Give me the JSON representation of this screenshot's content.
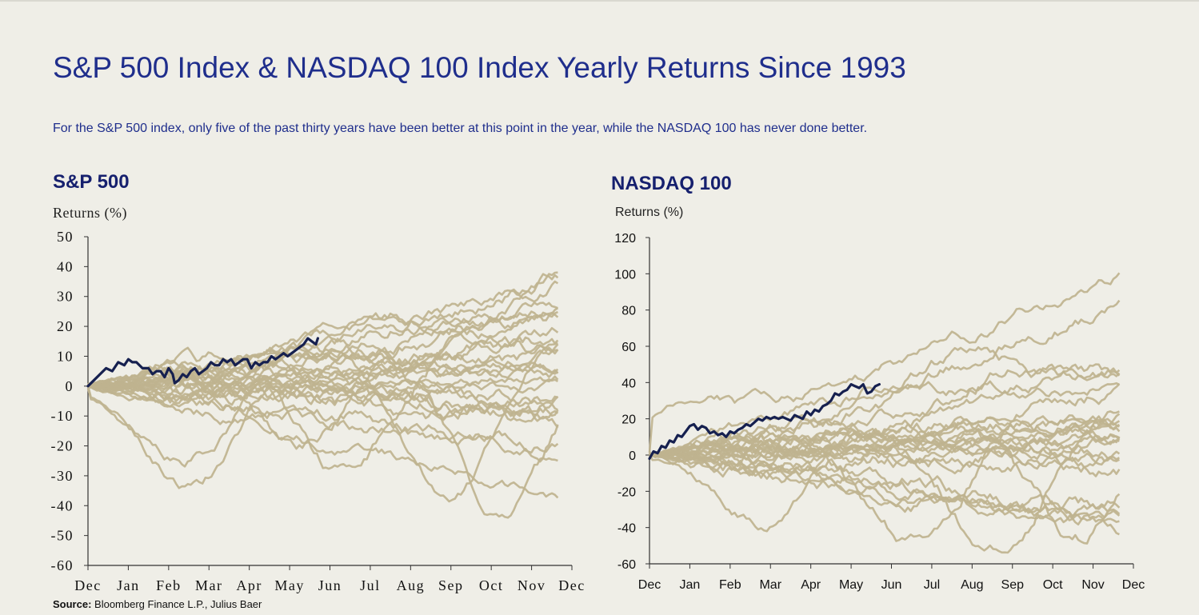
{
  "title": "S&P 500 Index & NASDAQ 100 Index Yearly Returns Since 1993",
  "subtitle": "For the S&P 500 index, only five of the past thirty years have been better at this point in the year, while the NASDAQ 100 has never done better.",
  "source": {
    "label": "Source:",
    "text": "Bloomberg Finance L.P., Julius Baer"
  },
  "colors": {
    "background": "#efeee7",
    "title": "#1f2e8c",
    "history": "#bfb38f",
    "current": "#16204f"
  },
  "chart_data": [
    {
      "type": "line",
      "title": "S&P 500",
      "ylabel": "Returns (%)",
      "ylim": [
        -60,
        50
      ],
      "yticks": [
        50,
        40,
        30,
        20,
        10,
        0,
        -10,
        -20,
        -30,
        -40,
        -50,
        -60
      ],
      "xlim": [
        0,
        12
      ],
      "xticks": [
        "Dec",
        "Jan",
        "Feb",
        "Mar",
        "Apr",
        "May",
        "Jun",
        "Jul",
        "Aug",
        "Sep",
        "Oct",
        "Nov",
        "Dec"
      ],
      "grid": false,
      "history_endpoints": [
        38,
        34,
        31,
        29,
        26,
        24,
        22,
        21,
        19,
        17,
        15,
        13,
        11,
        9,
        7,
        5,
        3,
        2,
        0,
        -3,
        -5,
        -7,
        -8,
        -9,
        -12,
        -19,
        -23,
        -36
      ],
      "history_extremes": {
        "peaks": [
          [
            9.5,
            20
          ],
          [
            10.6,
            32
          ],
          [
            11.6,
            38
          ]
        ],
        "troughs": [
          [
            2.4,
            -25
          ],
          [
            2.6,
            -31
          ],
          [
            5.4,
            -18
          ],
          [
            6.4,
            -28
          ],
          [
            9,
            -35
          ],
          [
            10.3,
            -47
          ]
        ]
      },
      "current_series": {
        "x": [
          0,
          0.15,
          0.3,
          0.45,
          0.6,
          0.75,
          0.9,
          1.0,
          1.1,
          1.2,
          1.35,
          1.5,
          1.6,
          1.7,
          1.8,
          1.9,
          2.0,
          2.1,
          2.15,
          2.25,
          2.35,
          2.45,
          2.55,
          2.65,
          2.75,
          2.85,
          2.95,
          3.05,
          3.15,
          3.25,
          3.35,
          3.45,
          3.55,
          3.65,
          3.75,
          3.85,
          3.95,
          4.05,
          4.15,
          4.25,
          4.35,
          4.45,
          4.55,
          4.65,
          4.75,
          4.85,
          4.95,
          5.05,
          5.15,
          5.25,
          5.35,
          5.45,
          5.55,
          5.65,
          5.7
        ],
        "values": [
          0,
          2,
          4,
          6,
          5,
          8,
          7,
          9,
          8,
          8,
          6,
          6,
          4,
          5,
          5,
          3,
          6,
          4,
          1,
          2,
          4,
          3,
          5,
          6,
          4,
          5,
          6,
          8,
          7,
          7,
          9,
          8,
          9,
          7,
          8,
          9,
          9,
          6,
          8,
          7,
          8,
          8,
          10,
          9,
          10,
          11,
          10,
          11,
          12,
          13,
          14,
          16,
          15,
          14,
          16
        ]
      }
    },
    {
      "type": "line",
      "title": "NASDAQ 100",
      "ylabel": "Returns (%)",
      "ylim": [
        -60,
        120
      ],
      "yticks": [
        120,
        100,
        80,
        60,
        40,
        20,
        0,
        -20,
        -40,
        -60
      ],
      "xlim": [
        0,
        12
      ],
      "xticks": [
        "Dec",
        "Jan",
        "Feb",
        "Mar",
        "Apr",
        "May",
        "Jun",
        "Jul",
        "Aug",
        "Sep",
        "Oct",
        "Nov",
        "Dec"
      ],
      "grid": false,
      "history_endpoints": [
        100,
        82,
        50,
        46,
        44,
        40,
        36,
        32,
        28,
        23,
        21,
        19,
        16,
        13,
        11,
        9,
        8,
        6,
        4,
        2,
        0,
        -3,
        -27,
        -33,
        -37,
        -40,
        -42
      ],
      "history_extremes": {
        "peaks": [
          [
            0.7,
            28
          ],
          [
            3.3,
            27
          ],
          [
            5.8,
            44
          ],
          [
            7.7,
            53
          ],
          [
            9.3,
            49
          ]
        ],
        "troughs": [
          [
            2.9,
            -36
          ],
          [
            6.6,
            -45
          ],
          [
            8.6,
            -50
          ],
          [
            10.6,
            -49
          ]
        ]
      },
      "current_series": {
        "x": [
          0,
          0.1,
          0.2,
          0.3,
          0.4,
          0.5,
          0.6,
          0.7,
          0.8,
          0.9,
          1.0,
          1.1,
          1.2,
          1.3,
          1.4,
          1.5,
          1.6,
          1.7,
          1.8,
          1.9,
          2.0,
          2.1,
          2.2,
          2.3,
          2.4,
          2.5,
          2.6,
          2.7,
          2.8,
          2.9,
          3.0,
          3.1,
          3.2,
          3.3,
          3.4,
          3.5,
          3.6,
          3.7,
          3.8,
          3.9,
          4.0,
          4.1,
          4.2,
          4.3,
          4.4,
          4.5,
          4.6,
          4.7,
          4.8,
          4.9,
          5.0,
          5.1,
          5.2,
          5.3,
          5.4,
          5.5,
          5.6,
          5.7
        ],
        "values": [
          -2,
          2,
          1,
          5,
          4,
          8,
          7,
          11,
          10,
          13,
          16,
          17,
          14,
          16,
          15,
          12,
          13,
          11,
          12,
          10,
          13,
          12,
          14,
          15,
          17,
          16,
          18,
          20,
          19,
          21,
          20,
          21,
          20,
          21,
          20,
          19,
          22,
          21,
          20,
          24,
          22,
          25,
          24,
          27,
          28,
          30,
          34,
          33,
          35,
          36,
          39,
          38,
          37,
          39,
          34,
          35,
          38,
          39
        ]
      }
    }
  ]
}
